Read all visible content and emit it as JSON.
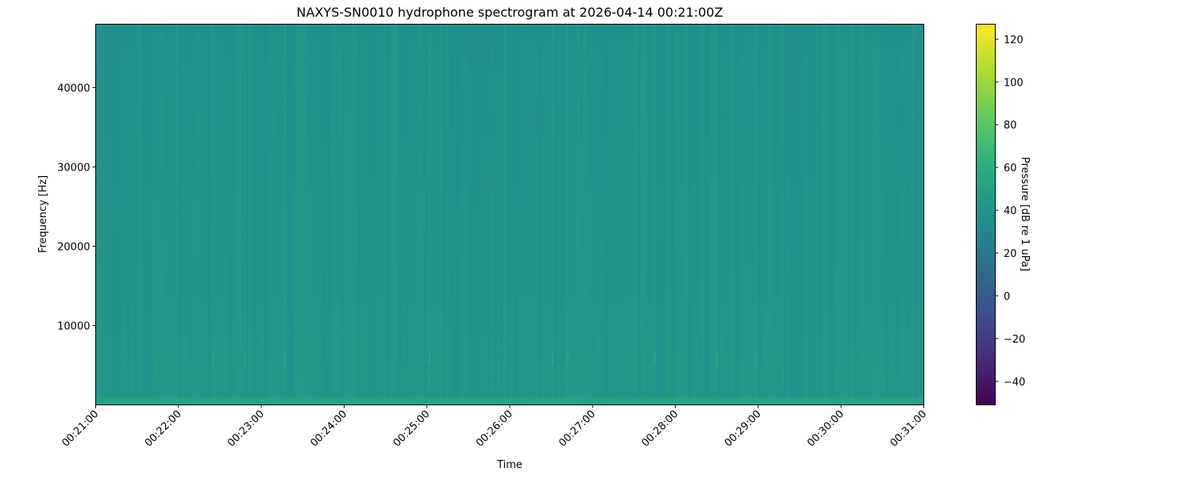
{
  "chart_data": {
    "type": "heatmap",
    "title": "NAXYS-SN0010 hydrophone spectrogram at 2026-04-14 00:21:00Z",
    "xlabel": "Time",
    "ylabel": "Frequency [Hz]",
    "x_ticks": [
      "00:21:00",
      "00:22:00",
      "00:23:00",
      "00:24:00",
      "00:25:00",
      "00:26:00",
      "00:27:00",
      "00:28:00",
      "00:29:00",
      "00:30:00",
      "00:31:00"
    ],
    "xlim": [
      "00:21:00",
      "00:31:00"
    ],
    "y_ticks": [
      10000,
      20000,
      30000,
      40000
    ],
    "ylim": [
      0,
      48000
    ],
    "colorbar": {
      "label": "Pressure [dB re 1 uPa]",
      "colormap": "viridis",
      "range": [
        -51,
        127
      ],
      "ticks": [
        -40,
        -20,
        0,
        20,
        40,
        60,
        80,
        100,
        120
      ]
    },
    "levels_db": {
      "background_high_freq": 38,
      "background_low_freq": 44,
      "lowest_band_below_1000hz": 52,
      "transient_peaks": 58
    },
    "transient_events": [
      "00:22:25",
      "00:22:48",
      "00:23:17",
      "00:25:02",
      "00:26:31",
      "00:26:42",
      "00:27:45",
      "00:28:30",
      "00:28:58"
    ]
  }
}
